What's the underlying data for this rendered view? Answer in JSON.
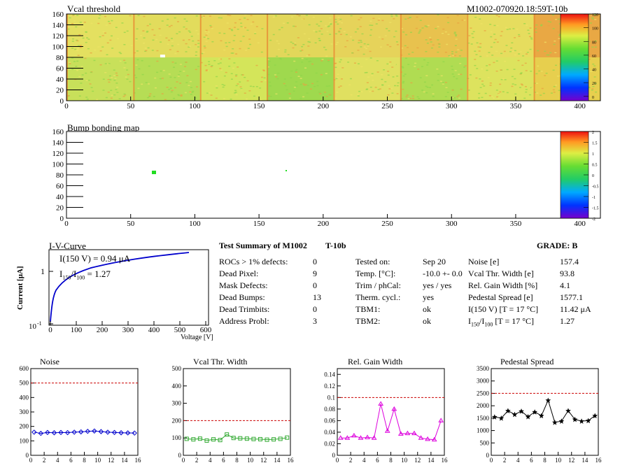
{
  "threshold_map": {
    "title": "Vcal threshold",
    "module_tag": "M1002-070920.18:59T-10b",
    "x_ticks": [
      "0",
      "50",
      "100",
      "150",
      "200",
      "250",
      "300",
      "350",
      "400"
    ],
    "y_ticks": [
      "0",
      "20",
      "40",
      "60",
      "80",
      "100",
      "120",
      "140",
      "160"
    ],
    "palette_ticks": [
      "0",
      "20",
      "40",
      "60",
      "80",
      "100",
      "120"
    ]
  },
  "bump_map": {
    "title": "Bump bonding map",
    "x_ticks": [
      "0",
      "50",
      "100",
      "150",
      "200",
      "250",
      "300",
      "350",
      "400"
    ],
    "y_ticks": [
      "0",
      "20",
      "40",
      "60",
      "80",
      "100",
      "120",
      "140",
      "160"
    ],
    "palette_ticks": [
      "-2",
      "-1.5",
      "-1",
      "-0.5",
      "0",
      "0.5",
      "1",
      "1.5",
      "2"
    ]
  },
  "iv": {
    "title": "I-V-Curve",
    "line1": "I(150 V) = 0.94 μA",
    "ratio_prefix": "I",
    "ratio_sub1": "150",
    "ratio_mid": "/I",
    "ratio_sub2": "100",
    "ratio_value": " = 1.27",
    "ylabel": "Current [μA]",
    "xlabel": "Voltage [V]",
    "x_ticks": [
      "0",
      "100",
      "200",
      "300",
      "400",
      "500",
      "600"
    ],
    "y_tick_1": "1",
    "y_tick_low_base": "10",
    "y_tick_low_exp": "-1"
  },
  "summary": {
    "title": "Test Summary of M1002",
    "tag": "T-10b",
    "grade": "GRADE:  B",
    "col1_labels": [
      "ROCs > 1% defects:",
      "Dead Pixel:",
      "Mask Defects:",
      "Dead Bumps:",
      "Dead Trimbits:",
      "Address Probl:"
    ],
    "col1_values": [
      "0",
      "9",
      "0",
      "13",
      "0",
      "3"
    ],
    "col2_labels": [
      "Tested on:",
      "Temp. [°C]:",
      "Trim / phCal:",
      "Therm. cycl.:",
      "TBM1:",
      "TBM2:"
    ],
    "col2_values": [
      "Sep 20",
      "-10.0 +- 0.0",
      "yes / yes",
      "yes",
      "ok",
      "ok"
    ],
    "col3_labels": [
      "Noise [e]",
      "Vcal Thr. Width [e]",
      "Rel. Gain Width [%]",
      "Pedestal Spread [e]",
      "I(150 V) [T = 17 °C]"
    ],
    "col3_values": [
      "157.4",
      "93.8",
      "4.1",
      "1577.1",
      "11.42 μA",
      "1.27"
    ],
    "ratio_row": {
      "p1": "I",
      "s1": "150",
      "p2": "/I",
      "s2": "100",
      "rest": "  [T = 17 °C]"
    }
  },
  "chart_data": [
    {
      "type": "line",
      "title": "Noise",
      "x": [
        0,
        1,
        2,
        3,
        4,
        5,
        6,
        7,
        8,
        9,
        10,
        11,
        12,
        13,
        14,
        15
      ],
      "values": [
        160,
        152,
        158,
        156,
        158,
        157,
        160,
        162,
        166,
        168,
        164,
        160,
        158,
        156,
        155,
        154
      ],
      "xlim": [
        0,
        16
      ],
      "ylim": [
        0,
        600
      ],
      "x_ticks": [
        0,
        2,
        4,
        6,
        8,
        10,
        12,
        14,
        16
      ],
      "y_ticks": [
        0,
        100,
        200,
        300,
        400,
        500,
        600
      ],
      "threshold": 500,
      "color": "#0000cc",
      "marker": "diamond"
    },
    {
      "type": "line",
      "title": "Vcal Thr. Width",
      "x": [
        0,
        1,
        2,
        3,
        4,
        5,
        6,
        7,
        8,
        9,
        10,
        11,
        12,
        13,
        14,
        15
      ],
      "values": [
        95,
        92,
        96,
        85,
        92,
        88,
        120,
        100,
        98,
        96,
        94,
        93,
        90,
        92,
        95,
        102
      ],
      "xlim": [
        0,
        16
      ],
      "ylim": [
        0,
        500
      ],
      "x_ticks": [
        0,
        2,
        4,
        6,
        8,
        10,
        12,
        14,
        16
      ],
      "y_ticks": [
        0,
        100,
        200,
        300,
        400,
        500
      ],
      "threshold": 200,
      "color": "#33aa33",
      "marker": "square"
    },
    {
      "type": "line",
      "title": "Rel. Gain Width",
      "x": [
        0,
        1,
        2,
        3,
        4,
        5,
        6,
        7,
        8,
        9,
        10,
        11,
        12,
        13,
        14,
        15
      ],
      "values": [
        0.03,
        0.03,
        0.034,
        0.03,
        0.031,
        0.03,
        0.089,
        0.042,
        0.08,
        0.037,
        0.038,
        0.038,
        0.03,
        0.028,
        0.027,
        0.06
      ],
      "xlim": [
        0,
        16
      ],
      "ylim": [
        0,
        0.15
      ],
      "x_ticks": [
        0,
        2,
        4,
        6,
        8,
        10,
        12,
        14,
        16
      ],
      "y_ticks": [
        0,
        0.02,
        0.04,
        0.06,
        0.08,
        0.1,
        0.12,
        0.14
      ],
      "threshold": 0.1,
      "color": "#dd00dd",
      "marker": "triangle"
    },
    {
      "type": "line",
      "title": "Pedestal Spread",
      "x": [
        0,
        1,
        2,
        3,
        4,
        5,
        6,
        7,
        8,
        9,
        10,
        11,
        12,
        13,
        14,
        15
      ],
      "values": [
        1550,
        1500,
        1800,
        1650,
        1780,
        1560,
        1750,
        1600,
        2220,
        1330,
        1380,
        1800,
        1450,
        1380,
        1400,
        1600
      ],
      "xlim": [
        0,
        16
      ],
      "ylim": [
        0,
        3500
      ],
      "x_ticks": [
        0,
        2,
        4,
        6,
        8,
        10,
        12,
        14,
        16
      ],
      "y_ticks": [
        0,
        500,
        1000,
        1500,
        2000,
        2500,
        3000,
        3500
      ],
      "threshold": 2500,
      "color": "#000000",
      "marker": "star"
    }
  ]
}
